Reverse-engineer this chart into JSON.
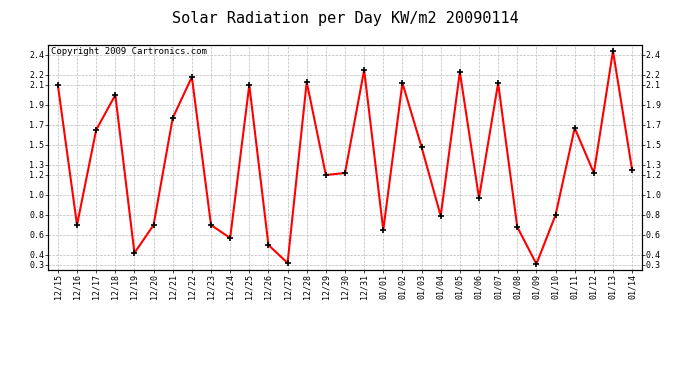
{
  "title": "Solar Radiation per Day KW/m2 20090114",
  "copyright": "Copyright 2009 Cartronics.com",
  "labels": [
    "12/15",
    "12/16",
    "12/17",
    "12/18",
    "12/19",
    "12/20",
    "12/21",
    "12/22",
    "12/23",
    "12/24",
    "12/25",
    "12/26",
    "12/27",
    "12/28",
    "12/29",
    "12/30",
    "12/31",
    "01/01",
    "01/02",
    "01/03",
    "01/04",
    "01/05",
    "01/06",
    "01/07",
    "01/08",
    "01/09",
    "01/10",
    "01/11",
    "01/12",
    "01/13",
    "01/14"
  ],
  "values": [
    2.1,
    0.7,
    1.65,
    2.0,
    0.42,
    0.7,
    1.77,
    2.18,
    0.7,
    0.57,
    2.1,
    0.5,
    0.32,
    2.13,
    1.2,
    1.22,
    2.25,
    0.65,
    2.12,
    1.48,
    0.79,
    2.23,
    0.97,
    2.12,
    0.68,
    0.31,
    0.8,
    1.67,
    1.22,
    2.44,
    1.25
  ],
  "line_color": "#ff0000",
  "marker_color": "#000000",
  "background_color": "#ffffff",
  "plot_bg_color": "#ffffff",
  "grid_color": "#bbbbbb",
  "ylim_min": 0.25,
  "ylim_max": 2.5,
  "yticks": [
    0.3,
    0.4,
    0.6,
    0.8,
    1.0,
    1.2,
    1.3,
    1.5,
    1.7,
    1.9,
    2.1,
    2.2,
    2.4
  ],
  "title_fontsize": 11,
  "copyright_fontsize": 6.5,
  "tick_fontsize": 6,
  "linewidth": 1.5,
  "markersize": 4
}
